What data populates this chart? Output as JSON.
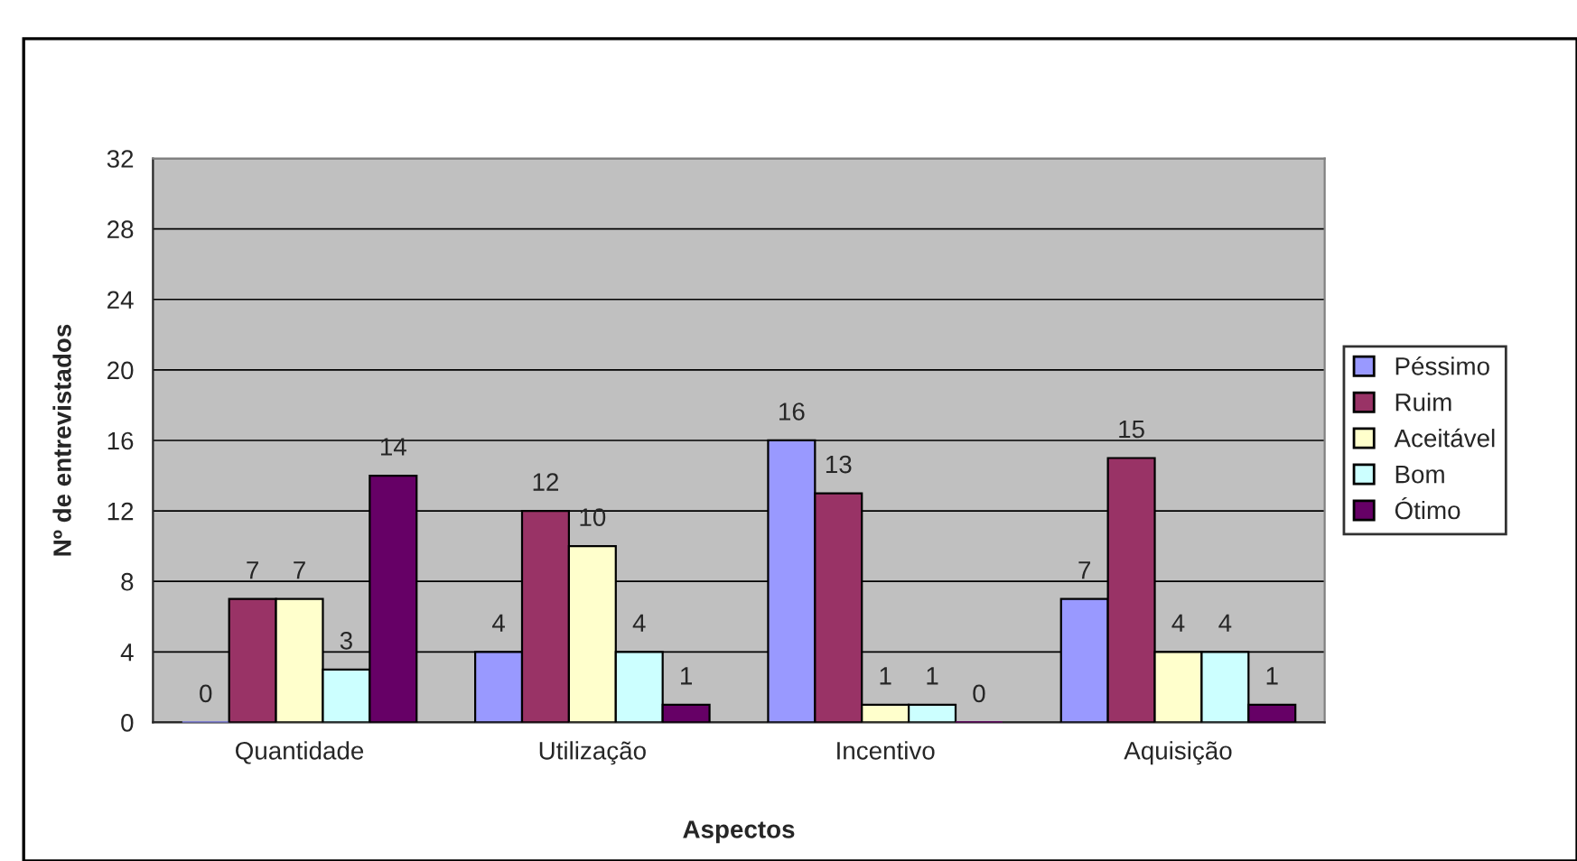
{
  "chart_data": {
    "type": "bar",
    "xlabel": "Aspectos",
    "ylabel": "Nº de entrevistados",
    "categories": [
      "Quantidade",
      "Utilização",
      "Incentivo",
      "Aquisição"
    ],
    "series": [
      {
        "name": "Péssimo",
        "color": "#9999ff",
        "values": [
          0,
          4,
          16,
          7
        ]
      },
      {
        "name": "Ruim",
        "color": "#993366",
        "values": [
          7,
          12,
          13,
          15
        ]
      },
      {
        "name": "Aceitável",
        "color": "#ffffcc",
        "values": [
          7,
          10,
          1,
          4
        ]
      },
      {
        "name": "Bom",
        "color": "#ccffff",
        "values": [
          3,
          4,
          1,
          4
        ]
      },
      {
        "name": "Ótimo",
        "color": "#660066",
        "values": [
          14,
          1,
          0,
          1
        ]
      }
    ],
    "ylim": [
      0,
      32
    ],
    "yticks": [
      0,
      4,
      8,
      12,
      16,
      20,
      24,
      28,
      32
    ],
    "grid": "y",
    "legend": "right",
    "data_labels": true
  }
}
